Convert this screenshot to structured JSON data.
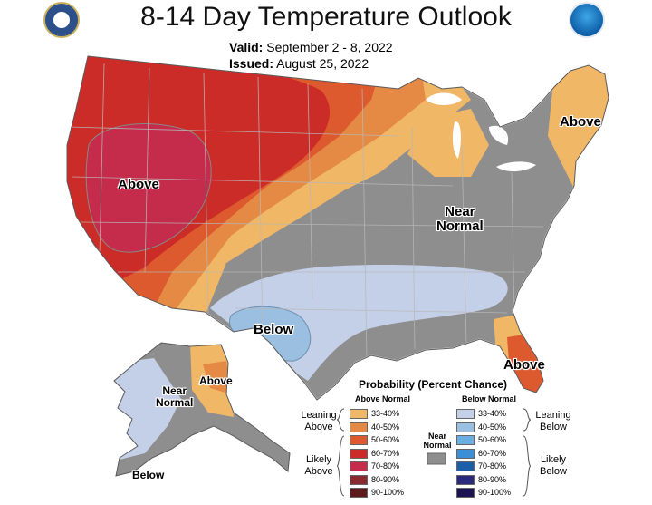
{
  "header": {
    "title": "8-14 Day Temperature Outlook",
    "valid_label": "Valid:",
    "valid_value": "September 2 - 8, 2022",
    "issued_label": "Issued:",
    "issued_value": "August 25, 2022",
    "left_logo": "doc-seal-icon",
    "right_logo": "noaa-logo-icon"
  },
  "map": {
    "labels": {
      "west_above": "Above",
      "northeast_above": "Above",
      "near_normal_line1": "Near",
      "near_normal_line2": "Normal",
      "texas_below": "Below",
      "florida_above": "Above",
      "alaska_near_line1": "Near",
      "alaska_near_line2": "Normal",
      "alaska_above": "Above",
      "alaska_below": "Below"
    }
  },
  "legend": {
    "title": "Probability (Percent Chance)",
    "above_header": "Above Normal",
    "below_header": "Below Normal",
    "near_label_line1": "Near",
    "near_label_line2": "Normal",
    "leaning_above_line1": "Leaning",
    "leaning_above_line2": "Above",
    "likely_above_line1": "Likely",
    "likely_above_line2": "Above",
    "leaning_below_line1": "Leaning",
    "leaning_below_line2": "Below",
    "likely_below_line1": "Likely",
    "likely_below_line2": "Below",
    "above": [
      {
        "label": "33-40%",
        "color": "#f0b766"
      },
      {
        "label": "40-50%",
        "color": "#e58a45"
      },
      {
        "label": "50-60%",
        "color": "#dd5a2f"
      },
      {
        "label": "60-70%",
        "color": "#cc2c27"
      },
      {
        "label": "70-80%",
        "color": "#c52b4a"
      },
      {
        "label": "80-90%",
        "color": "#8c2a33"
      },
      {
        "label": "90-100%",
        "color": "#5c1a1c"
      }
    ],
    "below": [
      {
        "label": "33-40%",
        "color": "#c4cfe8"
      },
      {
        "label": "40-50%",
        "color": "#9bbfe0"
      },
      {
        "label": "50-60%",
        "color": "#6baee0"
      },
      {
        "label": "60-70%",
        "color": "#3a8fd6"
      },
      {
        "label": "70-80%",
        "color": "#1c5fa8"
      },
      {
        "label": "80-90%",
        "color": "#2a2a7a"
      },
      {
        "label": "90-100%",
        "color": "#1c1450"
      }
    ],
    "near_color": "#8e8e8e"
  }
}
